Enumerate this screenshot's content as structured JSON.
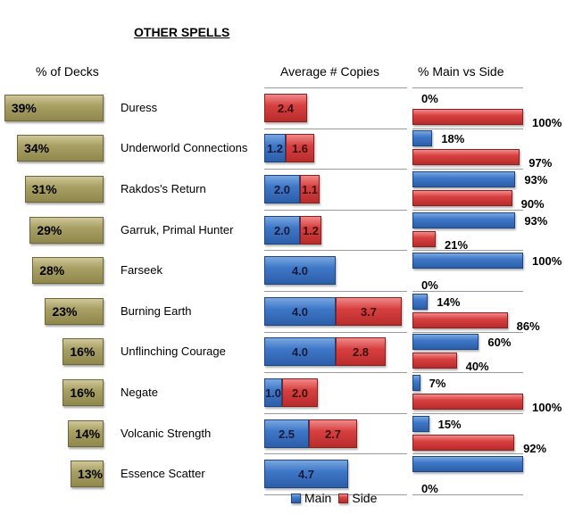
{
  "chart_data": {
    "type": "bar",
    "title": "OTHER SPELLS",
    "categories": [
      "Duress",
      "Underworld Connections",
      "Rakdos's Return",
      "Garruk, Primal Hunter",
      "Farseek",
      "Burning Earth",
      "Unflinching Courage",
      "Negate",
      "Volcanic Strength",
      "Essence Scatter"
    ],
    "panels": [
      {
        "title": "% of Decks",
        "unit": "%",
        "series": [
          {
            "name": "% of Decks",
            "color": "#a8a064",
            "values": [
              39,
              34,
              31,
              29,
              28,
              23,
              16,
              16,
              14,
              13
            ]
          }
        ],
        "labels": [
          "39%",
          "34%",
          "31%",
          "29%",
          "28%",
          "23%",
          "16%",
          "16%",
          "14%",
          "13%"
        ]
      },
      {
        "title": "Average # Copies",
        "stacked": true,
        "series": [
          {
            "name": "Main",
            "color": "#3f78c8",
            "values": [
              null,
              1.2,
              2.0,
              2.0,
              4.0,
              4.0,
              4.0,
              1.0,
              2.5,
              4.7
            ],
            "labels": [
              "",
              "1.2",
              "2.0",
              "2.0",
              "4.0",
              "4.0",
              "4.0",
              "1.0",
              "2.5",
              "4.7"
            ]
          },
          {
            "name": "Side",
            "color": "#d84040",
            "values": [
              2.4,
              1.6,
              1.1,
              1.2,
              null,
              3.7,
              2.8,
              2.0,
              2.7,
              null
            ],
            "labels": [
              "2.4",
              "1.6",
              "1.1",
              "1.2",
              "",
              "3.7",
              "2.8",
              "2.0",
              "2.7",
              ""
            ]
          }
        ]
      },
      {
        "title": "% Main vs Side",
        "unit": "%",
        "series": [
          {
            "name": "Main",
            "color": "#3f78c8",
            "values": [
              0,
              18,
              93,
              93,
              100,
              14,
              60,
              7,
              15,
              100
            ],
            "labels": [
              "0%",
              "18%",
              "93%",
              "93%",
              "100%",
              "14%",
              "60%",
              "7%",
              "15%",
              ""
            ]
          },
          {
            "name": "Side",
            "color": "#d84040",
            "values": [
              100,
              97,
              90,
              21,
              0,
              86,
              40,
              100,
              92,
              0
            ],
            "labels": [
              "100%",
              "97%",
              "90%",
              "21%",
              "0%",
              "86%",
              "40%",
              "100%",
              "92%",
              "0%"
            ]
          }
        ]
      }
    ],
    "legend": {
      "items": [
        "Main",
        "Side"
      ],
      "position": "bottom"
    }
  }
}
